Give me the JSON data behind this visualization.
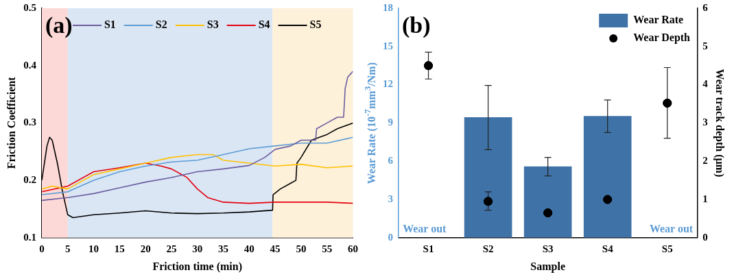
{
  "chart_data": [
    {
      "type": "line",
      "title": "(a)",
      "xlabel": "Friction time (min)",
      "ylabel": "Friction Coefficient",
      "xlim": [
        0,
        60
      ],
      "xticks": [
        0,
        5,
        10,
        15,
        20,
        25,
        30,
        35,
        40,
        45,
        50,
        55,
        60
      ],
      "ylim": [
        0.1,
        0.5
      ],
      "yticks": [
        0.1,
        0.2,
        0.3,
        0.4,
        0.5
      ],
      "legend": "top",
      "grid": false,
      "marker": "none",
      "line_style": "solid",
      "bands": [
        {
          "axis": "x",
          "from": 0,
          "to": 5,
          "color": "#fcd9d6"
        },
        {
          "axis": "x",
          "from": 5,
          "to": 44.5,
          "color": "#dbe6f4"
        },
        {
          "axis": "x",
          "from": 44.5,
          "to": 60,
          "color": "#fdf1da"
        }
      ],
      "series": [
        {
          "name": "S1",
          "color": "#6a5c9e",
          "x": [
            0,
            5,
            10,
            15,
            20,
            25,
            30,
            35,
            40,
            43,
            45,
            48,
            50,
            52.8,
            53,
            55,
            57,
            58.2,
            58.5,
            59,
            60
          ],
          "values": [
            0.165,
            0.17,
            0.177,
            0.187,
            0.197,
            0.205,
            0.215,
            0.22,
            0.226,
            0.24,
            0.254,
            0.26,
            0.27,
            0.27,
            0.29,
            0.3,
            0.31,
            0.31,
            0.36,
            0.38,
            0.39
          ]
        },
        {
          "name": "S2",
          "color": "#5b9bd5",
          "x": [
            0,
            5,
            10,
            15,
            20,
            25,
            30,
            35,
            40,
            45,
            50,
            55,
            60
          ],
          "values": [
            0.175,
            0.18,
            0.2,
            0.215,
            0.225,
            0.232,
            0.235,
            0.245,
            0.255,
            0.26,
            0.265,
            0.265,
            0.275
          ]
        },
        {
          "name": "S3",
          "color": "#ffc000",
          "x": [
            0,
            2,
            5,
            10,
            15,
            20,
            25,
            30,
            33,
            35,
            40,
            45,
            50,
            55,
            60
          ],
          "values": [
            0.185,
            0.19,
            0.185,
            0.21,
            0.22,
            0.23,
            0.24,
            0.245,
            0.245,
            0.235,
            0.23,
            0.225,
            0.228,
            0.222,
            0.225
          ]
        },
        {
          "name": "S4",
          "color": "#e3000f",
          "x": [
            0,
            5,
            10,
            15,
            20,
            23,
            25,
            28,
            30,
            32,
            35,
            40,
            45,
            50,
            55,
            60
          ],
          "values": [
            0.18,
            0.19,
            0.215,
            0.222,
            0.23,
            0.225,
            0.22,
            0.205,
            0.185,
            0.17,
            0.162,
            0.16,
            0.162,
            0.162,
            0.162,
            0.16
          ]
        },
        {
          "name": "S5",
          "color": "#000000",
          "x": [
            0,
            1,
            1.5,
            2,
            3,
            4,
            5,
            6,
            10,
            15,
            20,
            25,
            30,
            35,
            40,
            44.5,
            44.6,
            46,
            48,
            49,
            49.2,
            50,
            52,
            55,
            57,
            60
          ],
          "values": [
            0.2,
            0.26,
            0.275,
            0.27,
            0.23,
            0.18,
            0.14,
            0.135,
            0.14,
            0.143,
            0.147,
            0.143,
            0.142,
            0.143,
            0.145,
            0.148,
            0.175,
            0.185,
            0.195,
            0.2,
            0.23,
            0.24,
            0.27,
            0.28,
            0.29,
            0.3
          ]
        }
      ]
    },
    {
      "type": "bar",
      "title": "(b)",
      "xlabel": "Sample",
      "ylabel": "Wear Rate (10$^{-7}$mm$^{3}$/Nm)",
      "y2label": "Wear track depth (μm)",
      "categories": [
        "S1",
        "S2",
        "S3",
        "S4",
        "S5"
      ],
      "ylim": [
        0,
        18
      ],
      "yticks": [
        0,
        3,
        6,
        9,
        12,
        15,
        18
      ],
      "y2lim": [
        0,
        6
      ],
      "y2ticks": [
        0,
        1,
        2,
        3,
        4,
        5,
        6
      ],
      "legend": "top right",
      "grid": false,
      "annotations": [
        "Wear out",
        "Wear out"
      ],
      "series": [
        {
          "name": "Wear Rate",
          "type": "bar",
          "color": "#3f73a8",
          "values": [
            null,
            9.45,
            5.6,
            9.55,
            null
          ],
          "errors": [
            null,
            [
              6.9,
              11.95
            ],
            [
              4.85,
              6.3
            ],
            [
              8.25,
              10.8
            ],
            null
          ]
        },
        {
          "name": "Wear Depth",
          "type": "scatter",
          "axis": "y2",
          "marker": "circle",
          "color": "#000000",
          "values": [
            4.5,
            0.95,
            0.65,
            1.0,
            3.52
          ],
          "errors": [
            [
              4.15,
              4.85
            ],
            [
              0.72,
              1.2
            ],
            null,
            null,
            [
              2.6,
              4.45
            ]
          ]
        }
      ]
    }
  ]
}
